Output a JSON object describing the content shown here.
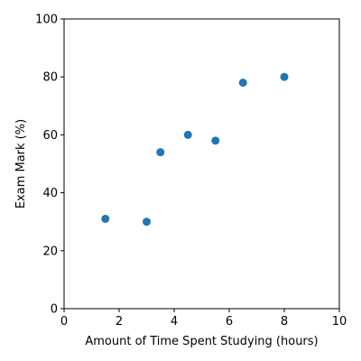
{
  "chart_data": {
    "type": "scatter",
    "title": "",
    "xlabel": "Amount of Time Spent Studying (hours)",
    "ylabel": "Exam Mark (%)",
    "xlim": [
      0,
      10
    ],
    "ylim": [
      0,
      100
    ],
    "xticks": [
      0,
      2,
      4,
      6,
      8,
      10
    ],
    "yticks": [
      0,
      20,
      40,
      60,
      80,
      100
    ],
    "grid": false,
    "legend": "none",
    "series": [
      {
        "color": "#1f77b4",
        "points": [
          {
            "x": 1.5,
            "y": 31
          },
          {
            "x": 3.0,
            "y": 30
          },
          {
            "x": 3.5,
            "y": 54
          },
          {
            "x": 4.5,
            "y": 60
          },
          {
            "x": 5.5,
            "y": 58
          },
          {
            "x": 6.5,
            "y": 78
          },
          {
            "x": 8.0,
            "y": 80
          }
        ]
      }
    ]
  }
}
